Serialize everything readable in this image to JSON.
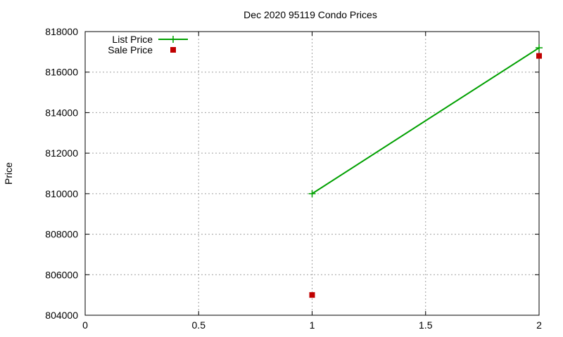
{
  "chart_data": {
    "type": "line",
    "title": "Dec 2020 95119 Condo Prices",
    "xlabel": "",
    "ylabel": "Price",
    "xlim": [
      0,
      2
    ],
    "ylim": [
      804000,
      818000
    ],
    "x_ticks": [
      0,
      0.5,
      1,
      1.5,
      2
    ],
    "x_tick_labels": [
      "0",
      "0.5",
      "1",
      "1.5",
      "2"
    ],
    "y_ticks": [
      804000,
      806000,
      808000,
      810000,
      812000,
      814000,
      816000,
      818000
    ],
    "y_tick_labels": [
      "804000",
      "806000",
      "808000",
      "810000",
      "812000",
      "814000",
      "816000",
      "818000"
    ],
    "grid": true,
    "legend_position": "top-left",
    "series": [
      {
        "name": "List Price",
        "style": "line+plus-marker",
        "color": "#00a000",
        "points": [
          {
            "x": 1,
            "y": 810000
          },
          {
            "x": 2,
            "y": 817200
          }
        ]
      },
      {
        "name": "Sale Price",
        "style": "square-marker",
        "color": "#c00000",
        "points": [
          {
            "x": 1,
            "y": 805000
          },
          {
            "x": 2,
            "y": 816800
          }
        ]
      }
    ]
  }
}
